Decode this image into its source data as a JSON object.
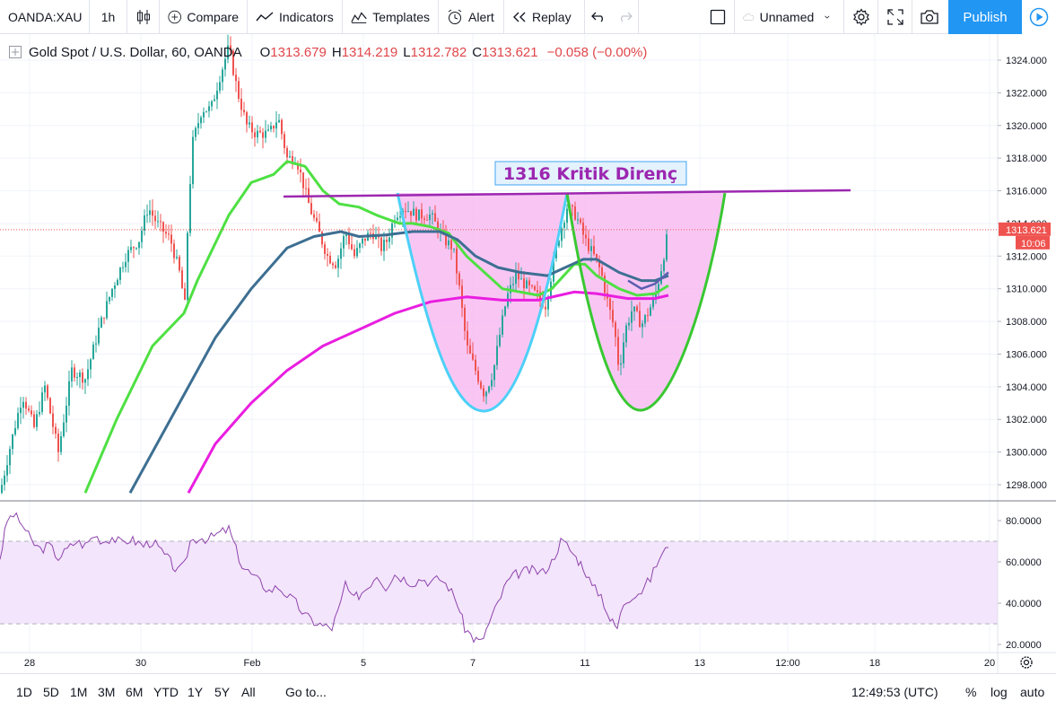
{
  "toolbar": {
    "symbol": "OANDA:XAU",
    "interval": "1h",
    "compare": "Compare",
    "indicators": "Indicators",
    "templates": "Templates",
    "alert": "Alert",
    "replay": "Replay",
    "layout_name": "Unnamed",
    "publish": "Publish"
  },
  "legend": {
    "title": "Gold Spot / U.S. Dollar, 60, OANDA",
    "o_label": "O",
    "o": "1313.679",
    "h_label": "H",
    "h": "1314.219",
    "l_label": "L",
    "l": "1312.782",
    "c_label": "C",
    "c": "1313.621",
    "change": "−0.058 (−0.00%)"
  },
  "annotation": {
    "text": "1316 Kritik Direnç"
  },
  "price_badge": {
    "price": "1313.621",
    "countdown": "10:06"
  },
  "bottom": {
    "ranges": [
      "1D",
      "5D",
      "1M",
      "3M",
      "6M",
      "YTD",
      "1Y",
      "5Y",
      "All"
    ],
    "goto": "Go to...",
    "time": "12:49:53 (UTC)",
    "percent": "%",
    "log": "log",
    "auto": "auto"
  },
  "colors": {
    "up": "#26a69a",
    "down": "#ef5350",
    "ma_fast": "#4ee043",
    "ma_mid": "#3d6f92",
    "ma_slow": "#e91ee0",
    "ma_short_blue": "#5b5fb0",
    "resistance": "#9c27b0",
    "cup_fill": "#f7b3f0",
    "cup_left": "#4dd0f7",
    "cup_right": "#39c832",
    "rsi": "#8e44ad",
    "rsi_band": "#f3e5fb"
  },
  "chart_data": [
    {
      "type": "candlestick",
      "title": "Gold Spot / U.S. Dollar, 60, OANDA",
      "ylim": [
        1297,
        1325.5
      ],
      "y_ticks": [
        1298,
        1300,
        1302,
        1304,
        1306,
        1308,
        1310,
        1312,
        1314,
        1316,
        1318,
        1320,
        1322,
        1324
      ],
      "y_tick_labels": [
        "1298.000",
        "1300.000",
        "1302.000",
        "1304.000",
        "1306.000",
        "1308.000",
        "1310.000",
        "1312.000",
        "1314.000",
        "1316.000",
        "1318.000",
        "1320.000",
        "1322.000",
        "1324.000"
      ],
      "x_tick_labels": [
        "28",
        "30",
        "Feb",
        "5",
        "7",
        "11",
        "13",
        "12:00",
        "18",
        "20"
      ],
      "price_path": [
        [
          0,
          1297.5
        ],
        [
          12,
          1300.5
        ],
        [
          25,
          1303.5
        ],
        [
          38,
          1301.5
        ],
        [
          50,
          1304
        ],
        [
          65,
          1300
        ],
        [
          80,
          1305
        ],
        [
          95,
          1304.5
        ],
        [
          110,
          1307.5
        ],
        [
          125,
          1310
        ],
        [
          140,
          1312
        ],
        [
          155,
          1313
        ],
        [
          165,
          1315
        ],
        [
          175,
          1314
        ],
        [
          190,
          1313
        ],
        [
          200,
          1311
        ],
        [
          206,
          1309
        ],
        [
          210,
          1315
        ],
        [
          215,
          1319
        ],
        [
          225,
          1321
        ],
        [
          235,
          1321
        ],
        [
          245,
          1323
        ],
        [
          255,
          1324.8
        ],
        [
          265,
          1322
        ],
        [
          275,
          1320
        ],
        [
          285,
          1319.5
        ],
        [
          300,
          1319.5
        ],
        [
          310,
          1320.5
        ],
        [
          320,
          1318
        ],
        [
          330,
          1318
        ],
        [
          345,
          1315
        ],
        [
          355,
          1313.5
        ],
        [
          365,
          1312
        ],
        [
          375,
          1311.5
        ],
        [
          385,
          1313.5
        ],
        [
          395,
          1312
        ],
        [
          405,
          1313
        ],
        [
          415,
          1313.5
        ],
        [
          425,
          1312.5
        ],
        [
          432,
          1313
        ],
        [
          440,
          1314.5
        ],
        [
          450,
          1315
        ],
        [
          465,
          1314.5
        ],
        [
          480,
          1314.5
        ],
        [
          495,
          1313
        ],
        [
          505,
          1312.5
        ],
        [
          512,
          1310
        ],
        [
          520,
          1306.5
        ],
        [
          530,
          1305
        ],
        [
          540,
          1303.5
        ],
        [
          550,
          1305
        ],
        [
          558,
          1307.5
        ],
        [
          565,
          1309.5
        ],
        [
          575,
          1310.8
        ],
        [
          590,
          1310
        ],
        [
          600,
          1309.5
        ],
        [
          608,
          1309
        ],
        [
          615,
          1311
        ],
        [
          622,
          1313
        ],
        [
          632,
          1315
        ],
        [
          642,
          1314.5
        ],
        [
          652,
          1313
        ],
        [
          662,
          1312
        ],
        [
          670,
          1311
        ],
        [
          678,
          1309
        ],
        [
          685,
          1307.5
        ],
        [
          690,
          1305
        ],
        [
          697,
          1307.5
        ],
        [
          705,
          1308.8
        ],
        [
          715,
          1307.8
        ],
        [
          722,
          1308.5
        ],
        [
          730,
          1309.5
        ],
        [
          738,
          1311.5
        ],
        [
          745,
          1313.6
        ]
      ],
      "series": [
        {
          "name": "",
          "type": "line",
          "points": [
            [
              95,
              1297.5
            ],
            [
              130,
              1302
            ],
            [
              170,
              1306.5
            ],
            [
              205,
              1308.5
            ],
            [
              220,
              1310.5
            ],
            [
              255,
              1314.5
            ],
            [
              280,
              1316.5
            ],
            [
              305,
              1317
            ],
            [
              320,
              1317.8
            ],
            [
              340,
              1317.5
            ],
            [
              360,
              1316
            ],
            [
              378,
              1315.2
            ],
            [
              400,
              1315
            ],
            [
              420,
              1314.5
            ],
            [
              445,
              1314
            ],
            [
              460,
              1314
            ],
            [
              480,
              1313.8
            ],
            [
              500,
              1313.4
            ],
            [
              520,
              1312
            ],
            [
              540,
              1311
            ],
            [
              560,
              1310
            ],
            [
              580,
              1309.8
            ],
            [
              600,
              1309.6
            ],
            [
              615,
              1310
            ],
            [
              640,
              1311.5
            ],
            [
              652,
              1311.5
            ],
            [
              665,
              1310.8
            ],
            [
              690,
              1310
            ],
            [
              710,
              1309.6
            ],
            [
              730,
              1309.7
            ],
            [
              745,
              1310.2
            ]
          ]
        },
        {
          "name": "",
          "type": "line",
          "points": [
            [
              145,
              1297.5
            ],
            [
              170,
              1300
            ],
            [
              200,
              1303
            ],
            [
              240,
              1307
            ],
            [
              280,
              1310
            ],
            [
              320,
              1312.5
            ],
            [
              350,
              1313.2
            ],
            [
              380,
              1313.5
            ],
            [
              400,
              1313.2
            ],
            [
              430,
              1313.3
            ],
            [
              460,
              1313.5
            ],
            [
              490,
              1313.5
            ],
            [
              510,
              1313
            ],
            [
              530,
              1312
            ],
            [
              555,
              1311.3
            ],
            [
              580,
              1311
            ],
            [
              610,
              1310.8
            ],
            [
              630,
              1311.3
            ],
            [
              650,
              1311.8
            ],
            [
              665,
              1311.8
            ],
            [
              690,
              1311
            ],
            [
              715,
              1310.5
            ],
            [
              730,
              1310.5
            ],
            [
              745,
              1310.8
            ]
          ]
        },
        {
          "name": "",
          "type": "line",
          "points": [
            [
              210,
              1297.5
            ],
            [
              240,
              1300.5
            ],
            [
              280,
              1303
            ],
            [
              320,
              1305
            ],
            [
              360,
              1306.5
            ],
            [
              400,
              1307.5
            ],
            [
              440,
              1308.5
            ],
            [
              480,
              1309.2
            ],
            [
              520,
              1309.5
            ],
            [
              560,
              1309.3
            ],
            [
              600,
              1309.3
            ],
            [
              640,
              1309.8
            ],
            [
              665,
              1309.7
            ],
            [
              700,
              1309.4
            ],
            [
              730,
              1309.4
            ],
            [
              745,
              1309.6
            ]
          ]
        }
      ],
      "resistance": {
        "value": 1316,
        "label": "1316 Kritik Direnç"
      },
      "last_price": 1313.621
    },
    {
      "type": "line",
      "name": "",
      "ylim": [
        18,
        86
      ],
      "y_ticks": [
        20,
        40,
        60,
        80
      ],
      "y_tick_labels": [
        "20.0000",
        "40.0000",
        "60.0000",
        "80.0000"
      ],
      "band": [
        30,
        70
      ],
      "points": [
        [
          0,
          62
        ],
        [
          8,
          80
        ],
        [
          15,
          83
        ],
        [
          25,
          78
        ],
        [
          35,
          70
        ],
        [
          45,
          66
        ],
        [
          55,
          68
        ],
        [
          65,
          62
        ],
        [
          75,
          66
        ],
        [
          85,
          70
        ],
        [
          95,
          68
        ],
        [
          105,
          73
        ],
        [
          115,
          70
        ],
        [
          125,
          72
        ],
        [
          135,
          69
        ],
        [
          145,
          71
        ],
        [
          160,
          68
        ],
        [
          170,
          70
        ],
        [
          180,
          65
        ],
        [
          190,
          60
        ],
        [
          198,
          55
        ],
        [
          205,
          58
        ],
        [
          212,
          70
        ],
        [
          222,
          72
        ],
        [
          232,
          71
        ],
        [
          245,
          74
        ],
        [
          255,
          76
        ],
        [
          263,
          66
        ],
        [
          270,
          58
        ],
        [
          280,
          54
        ],
        [
          290,
          50
        ],
        [
          300,
          46
        ],
        [
          310,
          48
        ],
        [
          320,
          44
        ],
        [
          330,
          40
        ],
        [
          340,
          34
        ],
        [
          350,
          31
        ],
        [
          360,
          29
        ],
        [
          370,
          28
        ],
        [
          380,
          40
        ],
        [
          385,
          50
        ],
        [
          392,
          42
        ],
        [
          400,
          44
        ],
        [
          410,
          48
        ],
        [
          420,
          54
        ],
        [
          430,
          48
        ],
        [
          440,
          54
        ],
        [
          450,
          52
        ],
        [
          460,
          50
        ],
        [
          470,
          52
        ],
        [
          480,
          50
        ],
        [
          490,
          52
        ],
        [
          500,
          48
        ],
        [
          510,
          40
        ],
        [
          518,
          28
        ],
        [
          528,
          23
        ],
        [
          536,
          21
        ],
        [
          545,
          30
        ],
        [
          555,
          40
        ],
        [
          565,
          50
        ],
        [
          575,
          54
        ],
        [
          590,
          56
        ],
        [
          605,
          55
        ],
        [
          615,
          60
        ],
        [
          625,
          70
        ],
        [
          632,
          68
        ],
        [
          642,
          62
        ],
        [
          650,
          58
        ],
        [
          660,
          48
        ],
        [
          670,
          44
        ],
        [
          680,
          32
        ],
        [
          688,
          28
        ],
        [
          695,
          40
        ],
        [
          705,
          44
        ],
        [
          715,
          46
        ],
        [
          725,
          52
        ],
        [
          735,
          62
        ],
        [
          745,
          67
        ]
      ]
    }
  ]
}
